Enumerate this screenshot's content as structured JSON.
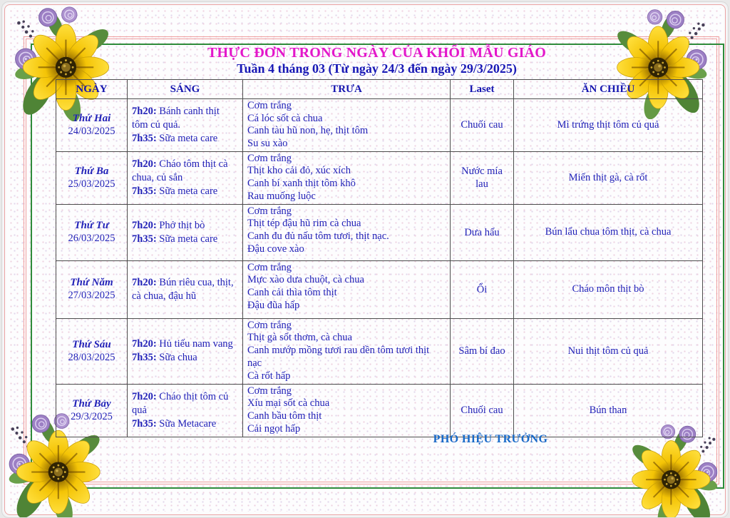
{
  "title": "THỰC ĐƠN TRONG NGÀY CỦA KHỐI MẪU GIÁO",
  "subtitle": "Tuần 4 tháng 03 (Từ ngày 24/3 đến ngày 29/3/2025)",
  "footer": "PHÓ HIỆU TRƯỞNG",
  "colors": {
    "title": "#e317ca",
    "subtitle": "#1717b5",
    "table_text": "#2222b8",
    "footer": "#1769c8",
    "frame_pink": "#ef9e9e",
    "frame_green": "#2e8b3a"
  },
  "icons": {
    "corner_decoration": "yellow-flower-with-purple-roses-and-leaves"
  },
  "table": {
    "headers": [
      "NGÀY",
      "SÁNG",
      "TRƯA",
      "Laset",
      "ĂN CHIỀU"
    ],
    "rows": [
      {
        "day": "Thứ Hai",
        "date": "24/03/2025",
        "morning": [
          {
            "time": "7h20:",
            "text": "Bánh canh thịt tôm củ quả."
          },
          {
            "time": "7h35:",
            "text": "Sữa meta care"
          }
        ],
        "lunch": [
          "Cơm trắng",
          "Cá lóc sốt cà chua",
          "Canh tàu hũ non, hẹ, thịt tôm",
          "Su su xào"
        ],
        "dessert": "Chuối cau",
        "afternoon": "Mì trứng thịt tôm củ quả"
      },
      {
        "day": "Thứ Ba",
        "date": "25/03/2025",
        "morning": [
          {
            "time": "7h20:",
            "text": "Cháo tôm thịt cà chua, củ sắn"
          },
          {
            "time": "7h35:",
            "text": "Sữa meta care"
          }
        ],
        "lunch": [
          "Cơm trắng",
          "Thịt kho cải đỏ, xúc xích",
          "Canh bí xanh thịt tôm khô",
          "Rau muống luộc"
        ],
        "dessert": "Nước mía lau",
        "afternoon": "Miến thịt gà, cà rốt"
      },
      {
        "day": "Thứ Tư",
        "date": "26/03/2025",
        "morning": [
          {
            "time": "7h20:",
            "text": "Phở thịt bò"
          },
          {
            "time": "7h35:",
            "text": "Sữa meta care"
          }
        ],
        "lunch": [
          "Cơm trắng",
          "Thịt tép đậu hũ rim cà chua",
          "Canh đu đủ nấu tôm tươi, thịt nạc.",
          "Đậu cove xào"
        ],
        "dessert": "Dưa hấu",
        "afternoon": "Bún lẩu chua tôm thịt, cà chua"
      },
      {
        "day": "Thứ Năm",
        "date": "27/03/2025",
        "morning": [
          {
            "time": "7h20:",
            "text": "Bún riêu cua, thịt, cà chua, đậu hũ"
          }
        ],
        "lunch": [
          "Cơm trắng",
          "Mực xào dưa chuột, cà chua",
          "Canh cải thìa tôm thịt",
          "Đậu đũa hấp"
        ],
        "dessert": "Ổi",
        "afternoon": "Cháo môn thịt bò"
      },
      {
        "day": "Thứ Sáu",
        "date": "28/03/2025",
        "morning": [
          {
            "time": "7h20:",
            "text": "Hủ tiếu nam vang"
          },
          {
            "time": "7h35:",
            "text": "Sữa chua"
          }
        ],
        "lunch": [
          "Cơm trắng",
          "Thịt gà sốt thơm, cà chua",
          "Canh mướp mồng tươi rau dền tôm tươi thịt nạc",
          "Cà rốt hấp"
        ],
        "dessert": "Sâm bí đao",
        "afternoon": "Nui thịt tôm củ quả"
      },
      {
        "day": "Thứ Bảy",
        "date": "29/3/2025",
        "morning": [
          {
            "time": "7h20:",
            "text": "Cháo thịt tôm củ quả"
          },
          {
            "time": "7h35:",
            "text": "Sữa Metacare"
          }
        ],
        "lunch": [
          "Cơm trắng",
          "Xíu mại sốt cà chua",
          "Canh bầu tôm thịt",
          "Cải ngọt hấp"
        ],
        "dessert": "Chuối cau",
        "afternoon": "Bún than"
      }
    ]
  }
}
